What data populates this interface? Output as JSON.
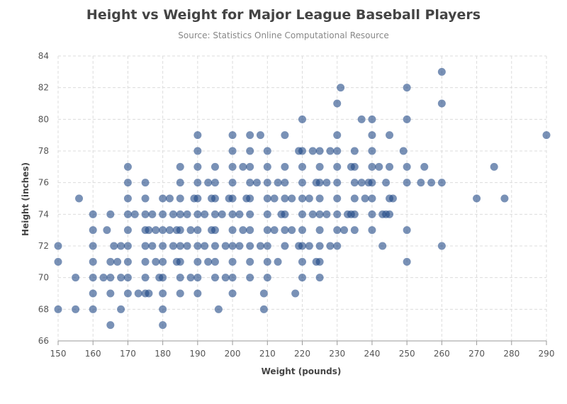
{
  "colors": {
    "point": "#1f4785",
    "grid": "#dcdcdc",
    "title": "#444444",
    "subtitle": "#888888"
  },
  "chart_data": {
    "type": "scatter",
    "title": "Height vs Weight for Major League Baseball Players",
    "subtitle": "Source: Statistics Online Computational Resource",
    "xlabel": "Weight (pounds)",
    "ylabel": "Height (inches)",
    "xlim": [
      150,
      290
    ],
    "ylim": [
      66,
      84
    ],
    "xticks": [
      150,
      160,
      170,
      180,
      190,
      200,
      210,
      220,
      230,
      240,
      250,
      260,
      270,
      280,
      290
    ],
    "yticks": [
      66,
      68,
      70,
      72,
      74,
      76,
      78,
      80,
      82,
      84
    ],
    "grid": true,
    "series": [
      {
        "color": "#1f4785",
        "points": [
          [
            150,
            72
          ],
          [
            150,
            71
          ],
          [
            150,
            68
          ],
          [
            155,
            70
          ],
          [
            155,
            68
          ],
          [
            156,
            75
          ],
          [
            160,
            74
          ],
          [
            160,
            73
          ],
          [
            160,
            72
          ],
          [
            160,
            71
          ],
          [
            160,
            70
          ],
          [
            160,
            69
          ],
          [
            160,
            68
          ],
          [
            163,
            70
          ],
          [
            164,
            73
          ],
          [
            165,
            74
          ],
          [
            165,
            71
          ],
          [
            165,
            70
          ],
          [
            165,
            69
          ],
          [
            165,
            67
          ],
          [
            166,
            72
          ],
          [
            167,
            71
          ],
          [
            168,
            70
          ],
          [
            168,
            72
          ],
          [
            168,
            68
          ],
          [
            170,
            77
          ],
          [
            170,
            76
          ],
          [
            170,
            75
          ],
          [
            170,
            74
          ],
          [
            170,
            73
          ],
          [
            170,
            72
          ],
          [
            170,
            71
          ],
          [
            170,
            70
          ],
          [
            170,
            69
          ],
          [
            172,
            74
          ],
          [
            173,
            69
          ],
          [
            175,
            76
          ],
          [
            175,
            75
          ],
          [
            175,
            74
          ],
          [
            175,
            73
          ],
          [
            175,
            72
          ],
          [
            175,
            71
          ],
          [
            175,
            70
          ],
          [
            175,
            69
          ],
          [
            176,
            69
          ],
          [
            176,
            73
          ],
          [
            177,
            74
          ],
          [
            177,
            72
          ],
          [
            178,
            71
          ],
          [
            178,
            73
          ],
          [
            179,
            70
          ],
          [
            180,
            75
          ],
          [
            180,
            74
          ],
          [
            180,
            73
          ],
          [
            180,
            72
          ],
          [
            180,
            71
          ],
          [
            180,
            70
          ],
          [
            180,
            69
          ],
          [
            180,
            68
          ],
          [
            180,
            67
          ],
          [
            182,
            75
          ],
          [
            182,
            73
          ],
          [
            183,
            74
          ],
          [
            183,
            72
          ],
          [
            184,
            71
          ],
          [
            184,
            73
          ],
          [
            185,
            77
          ],
          [
            185,
            76
          ],
          [
            185,
            75
          ],
          [
            185,
            74
          ],
          [
            185,
            73
          ],
          [
            185,
            72
          ],
          [
            185,
            71
          ],
          [
            185,
            70
          ],
          [
            185,
            69
          ],
          [
            187,
            74
          ],
          [
            187,
            72
          ],
          [
            188,
            70
          ],
          [
            188,
            73
          ],
          [
            189,
            75
          ],
          [
            190,
            79
          ],
          [
            190,
            78
          ],
          [
            190,
            77
          ],
          [
            190,
            76
          ],
          [
            190,
            75
          ],
          [
            190,
            74
          ],
          [
            190,
            73
          ],
          [
            190,
            72
          ],
          [
            190,
            71
          ],
          [
            190,
            70
          ],
          [
            190,
            69
          ],
          [
            192,
            74
          ],
          [
            192,
            72
          ],
          [
            193,
            76
          ],
          [
            193,
            71
          ],
          [
            194,
            73
          ],
          [
            194,
            75
          ],
          [
            195,
            77
          ],
          [
            195,
            76
          ],
          [
            195,
            75
          ],
          [
            195,
            74
          ],
          [
            195,
            73
          ],
          [
            195,
            72
          ],
          [
            195,
            71
          ],
          [
            195,
            70
          ],
          [
            196,
            68
          ],
          [
            197,
            74
          ],
          [
            198,
            72
          ],
          [
            198,
            70
          ],
          [
            199,
            75
          ],
          [
            200,
            79
          ],
          [
            200,
            78
          ],
          [
            200,
            77
          ],
          [
            200,
            76
          ],
          [
            200,
            75
          ],
          [
            200,
            74
          ],
          [
            200,
            73
          ],
          [
            200,
            72
          ],
          [
            200,
            71
          ],
          [
            200,
            70
          ],
          [
            200,
            69
          ],
          [
            202,
            74
          ],
          [
            202,
            72
          ],
          [
            203,
            77
          ],
          [
            203,
            73
          ],
          [
            204,
            75
          ],
          [
            205,
            79
          ],
          [
            205,
            78
          ],
          [
            205,
            77
          ],
          [
            205,
            76
          ],
          [
            205,
            75
          ],
          [
            205,
            74
          ],
          [
            205,
            73
          ],
          [
            205,
            72
          ],
          [
            205,
            71
          ],
          [
            205,
            70
          ],
          [
            207,
            76
          ],
          [
            208,
            79
          ],
          [
            208,
            72
          ],
          [
            209,
            68
          ],
          [
            209,
            69
          ],
          [
            210,
            78
          ],
          [
            210,
            77
          ],
          [
            210,
            76
          ],
          [
            210,
            75
          ],
          [
            210,
            74
          ],
          [
            210,
            73
          ],
          [
            210,
            72
          ],
          [
            210,
            71
          ],
          [
            210,
            70
          ],
          [
            212,
            75
          ],
          [
            212,
            73
          ],
          [
            213,
            76
          ],
          [
            213,
            71
          ],
          [
            214,
            74
          ],
          [
            215,
            79
          ],
          [
            215,
            77
          ],
          [
            215,
            76
          ],
          [
            215,
            75
          ],
          [
            215,
            74
          ],
          [
            215,
            73
          ],
          [
            215,
            72
          ],
          [
            217,
            75
          ],
          [
            217,
            73
          ],
          [
            218,
            69
          ],
          [
            219,
            78
          ],
          [
            219,
            72
          ],
          [
            220,
            80
          ],
          [
            220,
            78
          ],
          [
            220,
            77
          ],
          [
            220,
            76
          ],
          [
            220,
            75
          ],
          [
            220,
            74
          ],
          [
            220,
            73
          ],
          [
            220,
            72
          ],
          [
            220,
            71
          ],
          [
            220,
            70
          ],
          [
            222,
            75
          ],
          [
            222,
            72
          ],
          [
            223,
            78
          ],
          [
            223,
            74
          ],
          [
            224,
            71
          ],
          [
            224,
            76
          ],
          [
            225,
            78
          ],
          [
            225,
            77
          ],
          [
            225,
            76
          ],
          [
            225,
            75
          ],
          [
            225,
            74
          ],
          [
            225,
            73
          ],
          [
            225,
            72
          ],
          [
            225,
            71
          ],
          [
            225,
            70
          ],
          [
            227,
            76
          ],
          [
            227,
            74
          ],
          [
            228,
            78
          ],
          [
            228,
            72
          ],
          [
            230,
            81
          ],
          [
            230,
            79
          ],
          [
            230,
            78
          ],
          [
            230,
            77
          ],
          [
            230,
            76
          ],
          [
            230,
            75
          ],
          [
            230,
            74
          ],
          [
            230,
            73
          ],
          [
            230,
            72
          ],
          [
            231,
            82
          ],
          [
            232,
            73
          ],
          [
            233,
            74
          ],
          [
            234,
            77
          ],
          [
            234,
            74
          ],
          [
            235,
            78
          ],
          [
            235,
            77
          ],
          [
            235,
            76
          ],
          [
            235,
            75
          ],
          [
            235,
            74
          ],
          [
            235,
            73
          ],
          [
            237,
            80
          ],
          [
            237,
            76
          ],
          [
            238,
            75
          ],
          [
            239,
            76
          ],
          [
            240,
            80
          ],
          [
            240,
            79
          ],
          [
            240,
            78
          ],
          [
            240,
            77
          ],
          [
            240,
            76
          ],
          [
            240,
            75
          ],
          [
            240,
            74
          ],
          [
            240,
            73
          ],
          [
            242,
            77
          ],
          [
            243,
            74
          ],
          [
            243,
            72
          ],
          [
            244,
            76
          ],
          [
            244,
            74
          ],
          [
            245,
            79
          ],
          [
            245,
            77
          ],
          [
            245,
            75
          ],
          [
            245,
            74
          ],
          [
            246,
            75
          ],
          [
            249,
            78
          ],
          [
            250,
            82
          ],
          [
            250,
            80
          ],
          [
            250,
            77
          ],
          [
            250,
            76
          ],
          [
            250,
            73
          ],
          [
            250,
            71
          ],
          [
            254,
            76
          ],
          [
            255,
            77
          ],
          [
            257,
            76
          ],
          [
            260,
            83
          ],
          [
            260,
            81
          ],
          [
            260,
            76
          ],
          [
            260,
            72
          ],
          [
            270,
            75
          ],
          [
            275,
            77
          ],
          [
            278,
            75
          ],
          [
            290,
            79
          ]
        ]
      }
    ]
  }
}
